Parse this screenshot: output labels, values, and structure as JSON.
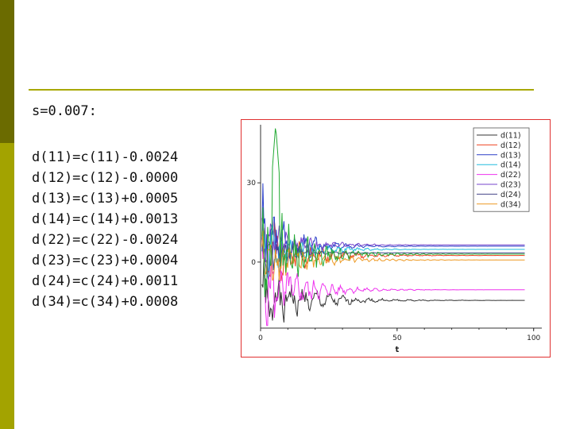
{
  "heading": "s=0.007:",
  "equations": [
    "d(11)=c(11)-0.0024",
    "d(12)=c(12)-0.0000",
    "d(13)=c(13)+0.0005",
    "d(14)=c(14)+0.0013",
    "d(22)=c(22)-0.0024",
    "d(23)=c(23)+0.0004",
    "d(24)=c(24)+0.0011",
    "d(34)=c(34)+0.0008"
  ],
  "colors": {
    "sidebar_dark": "#6b6b00",
    "sidebar_light": "#a3a300",
    "rule": "#a8a800",
    "chart_border": "#e03030"
  },
  "chart_data": {
    "type": "line",
    "title": "",
    "xlabel": "t",
    "ylabel": "",
    "xlim": [
      0,
      103
    ],
    "ylim": [
      -25,
      52
    ],
    "xticks": [
      0,
      50,
      100
    ],
    "yticks": [
      0,
      30
    ],
    "legend_position": "top-right",
    "grid": false,
    "series": [
      {
        "name": "d(11)",
        "color": "#333333",
        "settle": -14.5,
        "amp": 9,
        "seed": 1,
        "decay": 14
      },
      {
        "name": "d(12)",
        "color": "#ee4422",
        "settle": 2.5,
        "amp": 10,
        "seed": 2,
        "decay": 13
      },
      {
        "name": "d(13)",
        "color": "#2a3fc8",
        "settle": 6.0,
        "amp": 14,
        "seed": 3,
        "decay": 10
      },
      {
        "name": "d(14)",
        "color": "#22bbdd",
        "settle": 4.8,
        "amp": 7,
        "seed": 4,
        "decay": 12
      },
      {
        "name": "d(22)",
        "color": "#ee33ee",
        "settle": -10.5,
        "amp": 12,
        "seed": 5,
        "decay": 12
      },
      {
        "name": "d(23)",
        "color": "#7744cc",
        "settle": 6.5,
        "amp": 8,
        "seed": 6,
        "decay": 11
      },
      {
        "name": "d(24)",
        "color": "#444488",
        "settle": 3.5,
        "amp": 6,
        "seed": 7,
        "decay": 9
      },
      {
        "name": "d(34)",
        "color": "#ee9922",
        "settle": 0.8,
        "amp": 7,
        "seed": 8,
        "decay": 14
      },
      {
        "name": "",
        "color": "#22aa33",
        "settle": 3.0,
        "amp": 16,
        "seed": 9,
        "decay": 12,
        "spike": 52
      }
    ]
  }
}
